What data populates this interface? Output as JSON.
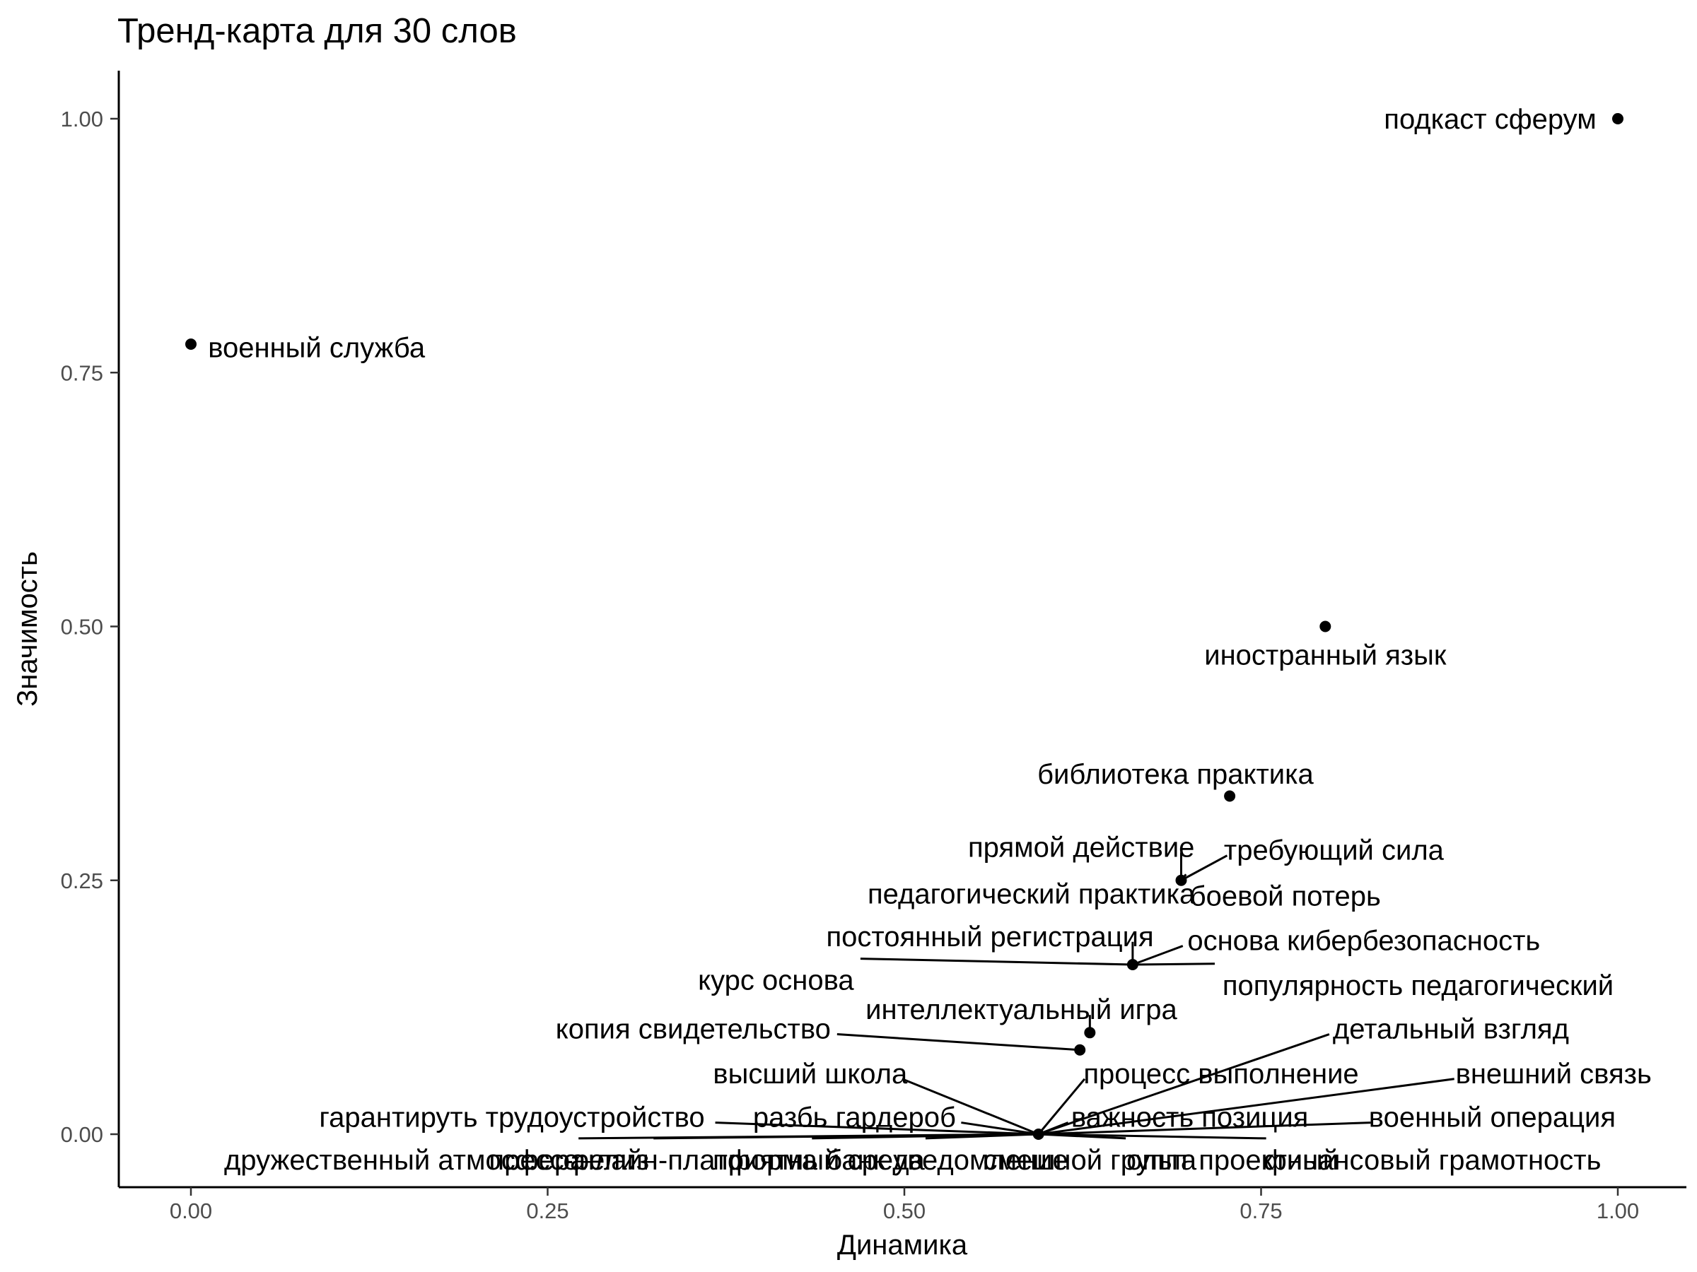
{
  "chart_data": {
    "type": "scatter",
    "title": "Тренд-карта для 30 слов",
    "xlabel": "Динамика",
    "ylabel": "Значимость",
    "xlim": [
      -0.05,
      1.05
    ],
    "ylim": [
      -0.02,
      1.05
    ],
    "x_ticks": [
      0.0,
      0.25,
      0.5,
      0.75,
      1.0
    ],
    "y_ticks": [
      0.0,
      0.25,
      0.5,
      0.75,
      1.0
    ],
    "x_tick_labels": [
      "0.00",
      "0.25",
      "0.50",
      "0.75",
      "1.00"
    ],
    "y_tick_labels": [
      "0.00",
      "0.25",
      "0.50",
      "0.75",
      "1.00"
    ],
    "grid": false,
    "legend": "none",
    "point_color": "#000000",
    "points": [
      {
        "label": "подкаст сферум",
        "x": 1.0,
        "y": 1.0,
        "lx": 0.985,
        "ly": 1.0,
        "anchor": "end"
      },
      {
        "label": "военный служба",
        "x": 0.0,
        "y": 0.778,
        "lx": 0.012,
        "ly": 0.775,
        "anchor": "start"
      },
      {
        "label": "иностранный язык",
        "x": 0.795,
        "y": 0.5,
        "lx": 0.795,
        "ly": 0.472,
        "anchor": "middle"
      },
      {
        "label": "библиотека практика",
        "x": 0.728,
        "y": 0.333,
        "lx": 0.69,
        "ly": 0.355,
        "anchor": "middle"
      },
      {
        "label": "прямой действие",
        "x": 0.694,
        "y": 0.25,
        "lx": 0.624,
        "ly": 0.283,
        "anchor": "middle",
        "leader": true
      },
      {
        "label": "требующий сила",
        "x": 0.694,
        "y": 0.25,
        "lx": 0.801,
        "ly": 0.28,
        "anchor": "middle",
        "leader": true
      },
      {
        "label": "педагогический практика",
        "x": 0.694,
        "y": 0.25,
        "lx": 0.589,
        "ly": 0.237,
        "anchor": "middle",
        "leader": true
      },
      {
        "label": "боевой потерь",
        "x": 0.694,
        "y": 0.25,
        "lx": 0.767,
        "ly": 0.235,
        "anchor": "middle",
        "leader": true
      },
      {
        "label": "постоянный регистрация",
        "x": 0.66,
        "y": 0.167,
        "lx": 0.56,
        "ly": 0.195,
        "anchor": "middle",
        "leader": true
      },
      {
        "label": "основа кибербезопасность",
        "x": 0.66,
        "y": 0.167,
        "lx": 0.822,
        "ly": 0.191,
        "anchor": "middle",
        "leader": true
      },
      {
        "label": "курс основа",
        "x": 0.66,
        "y": 0.167,
        "lx": 0.41,
        "ly": 0.152,
        "anchor": "middle",
        "leader": true
      },
      {
        "label": "популярность педагогический",
        "x": 0.66,
        "y": 0.167,
        "lx": 0.86,
        "ly": 0.147,
        "anchor": "middle",
        "leader": true
      },
      {
        "label": "интеллектуальный игра",
        "x": 0.63,
        "y": 0.1,
        "lx": 0.582,
        "ly": 0.123,
        "anchor": "middle",
        "leader": true
      },
      {
        "label": "копия свидетельство",
        "x": 0.623,
        "y": 0.083,
        "lx": 0.352,
        "ly": 0.104,
        "anchor": "middle",
        "leader": true
      },
      {
        "label": "детальный взгляд",
        "x": 0.594,
        "y": 0.0,
        "lx": 0.883,
        "ly": 0.104,
        "anchor": "middle",
        "leader": true
      },
      {
        "label": "высший школа",
        "x": 0.594,
        "y": 0.0,
        "lx": 0.434,
        "ly": 0.06,
        "anchor": "middle",
        "leader": true
      },
      {
        "label": "процесс выполнение",
        "x": 0.594,
        "y": 0.0,
        "lx": 0.722,
        "ly": 0.06,
        "anchor": "middle",
        "leader": true
      },
      {
        "label": "внешний связь",
        "x": 0.594,
        "y": 0.0,
        "lx": 0.955,
        "ly": 0.06,
        "anchor": "middle",
        "leader": true
      },
      {
        "label": "гарантируть трудоустройство",
        "x": 0.594,
        "y": 0.0,
        "lx": 0.225,
        "ly": 0.017,
        "anchor": "middle",
        "leader": true
      },
      {
        "label": "разбь гардероб",
        "x": 0.594,
        "y": 0.0,
        "lx": 0.465,
        "ly": 0.017,
        "anchor": "middle",
        "leader": true
      },
      {
        "label": "важность позиция",
        "x": 0.594,
        "y": 0.0,
        "lx": 0.7,
        "ly": 0.017,
        "anchor": "middle",
        "leader": true
      },
      {
        "label": "военный операция",
        "x": 0.594,
        "y": 0.0,
        "lx": 0.912,
        "ly": 0.017,
        "anchor": "middle",
        "leader": true
      },
      {
        "label": "дружественный атмосфера",
        "x": 0.594,
        "y": 0.0,
        "lx": 0.15,
        "ly": -0.025,
        "anchor": "middle",
        "leader": true
      },
      {
        "label": "пресс-релиз",
        "x": 0.594,
        "y": 0.0,
        "lx": 0.265,
        "ly": -0.025,
        "anchor": "middle",
        "leader": true
      },
      {
        "label": "онлайн-платформа",
        "x": 0.594,
        "y": 0.0,
        "lx": 0.35,
        "ly": -0.025,
        "anchor": "middle",
        "leader": true
      },
      {
        "label": "приятный среда",
        "x": 0.594,
        "y": 0.0,
        "lx": 0.44,
        "ly": -0.025,
        "anchor": "middle",
        "leader": true
      },
      {
        "label": "банк уведомление",
        "x": 0.594,
        "y": 0.0,
        "lx": 0.53,
        "ly": -0.025,
        "anchor": "middle",
        "leader": true
      },
      {
        "label": "смешной группа",
        "x": 0.594,
        "y": 0.0,
        "lx": 0.63,
        "ly": -0.025,
        "anchor": "middle",
        "leader": true
      },
      {
        "label": "опыт проектный",
        "x": 0.594,
        "y": 0.0,
        "lx": 0.73,
        "ly": -0.025,
        "anchor": "middle",
        "leader": true
      },
      {
        "label": "финансовый грамотность",
        "x": 0.594,
        "y": 0.0,
        "lx": 0.87,
        "ly": -0.025,
        "anchor": "middle",
        "leader": true
      }
    ]
  }
}
